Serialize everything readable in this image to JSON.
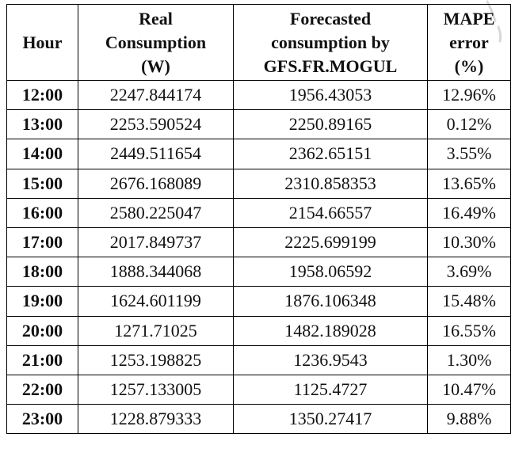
{
  "table": {
    "headers": [
      {
        "lines": [
          "Hour"
        ]
      },
      {
        "lines": [
          "Real",
          "Consumption",
          "(W)"
        ]
      },
      {
        "lines": [
          "Forecasted",
          "consumption by",
          "GFS.FR.MOGUL"
        ]
      },
      {
        "lines": [
          "MAPE",
          "error",
          "(%)"
        ]
      }
    ],
    "rows": [
      [
        "12:00",
        "2247.844174",
        "1956.43053",
        "12.96%"
      ],
      [
        "13:00",
        "2253.590524",
        "2250.89165",
        "0.12%"
      ],
      [
        "14:00",
        "2449.511654",
        "2362.65151",
        "3.55%"
      ],
      [
        "15:00",
        "2676.168089",
        "2310.858353",
        "13.65%"
      ],
      [
        "16:00",
        "2580.225047",
        "2154.66557",
        "16.49%"
      ],
      [
        "17:00",
        "2017.849737",
        "2225.699199",
        "10.30%"
      ],
      [
        "18:00",
        "1888.344068",
        "1958.06592",
        "3.69%"
      ],
      [
        "19:00",
        "1624.601199",
        "1876.106348",
        "15.48%"
      ],
      [
        "20:00",
        "1271.71025",
        "1482.189028",
        "16.55%"
      ],
      [
        "21:00",
        "1253.198825",
        "1236.9543",
        "1.30%"
      ],
      [
        "22:00",
        "1257.133005",
        "1125.4727",
        "10.47%"
      ],
      [
        "23:00",
        "1228.879333",
        "1350.27417",
        "9.88%"
      ]
    ]
  }
}
